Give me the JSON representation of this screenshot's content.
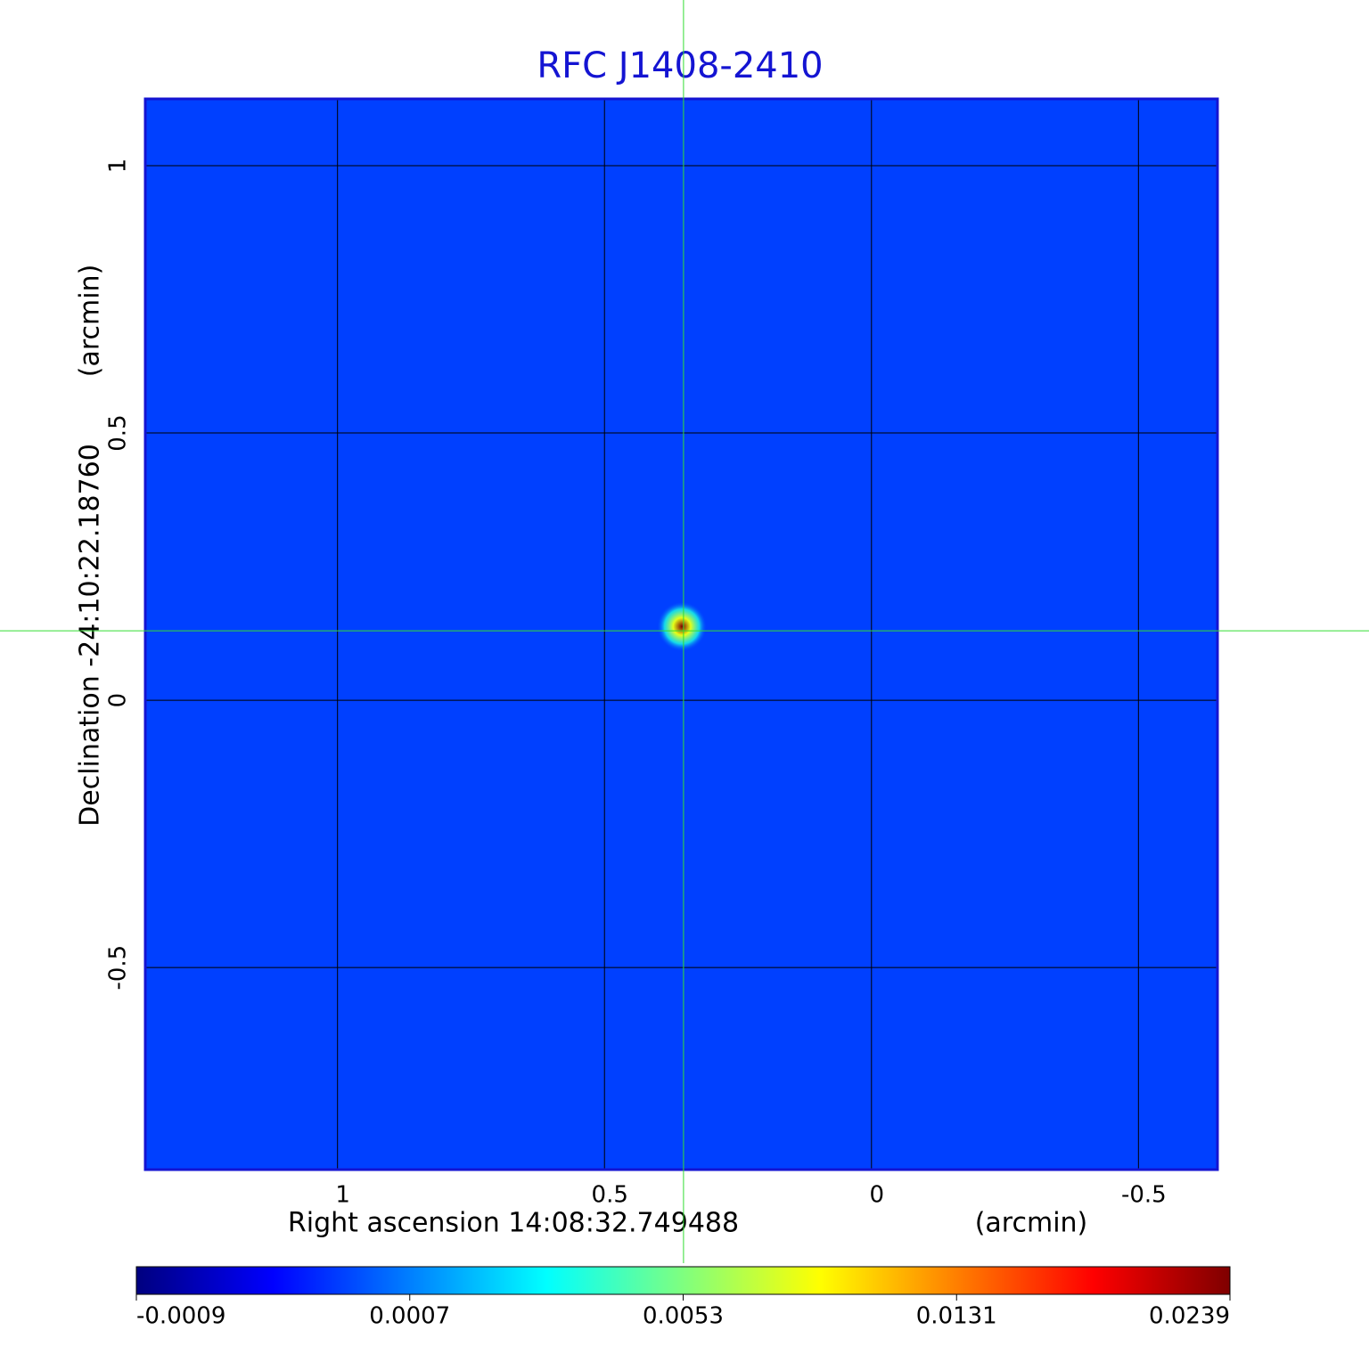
{
  "chart_data": {
    "type": "heatmap",
    "title": "RFC J1408-2410",
    "x_label": "Right ascension  14:08:32.749488",
    "x_unit": "(arcmin)",
    "y_label": "Declination  -24:10:22.18760",
    "y_unit": "(arcmin)",
    "xlim": [
      1.36,
      -0.648
    ],
    "ylim": [
      -0.878,
      1.125
    ],
    "xticks": [
      1.0,
      0.5,
      0.0,
      -0.5
    ],
    "yticks": [
      1.0,
      0.5,
      0.0,
      -0.5
    ],
    "grid": true,
    "background_level": 0.0003,
    "source": {
      "x": 0.355,
      "y": 0.138,
      "peak": 0.0239
    },
    "crosshair": {
      "x": 0.352,
      "y": 0.13,
      "color": "#33dd33"
    },
    "colorbar_ticks": [
      -0.0009,
      0.0007,
      0.0053,
      0.0131,
      0.0239
    ],
    "colormap": [
      "#00007f",
      "#0000ff",
      "#007fff",
      "#00ffff",
      "#7fff7f",
      "#ffff00",
      "#ff7f00",
      "#ff0000",
      "#7f0000"
    ],
    "frame_color": "#1414d2",
    "title_color": "#1414d2"
  }
}
